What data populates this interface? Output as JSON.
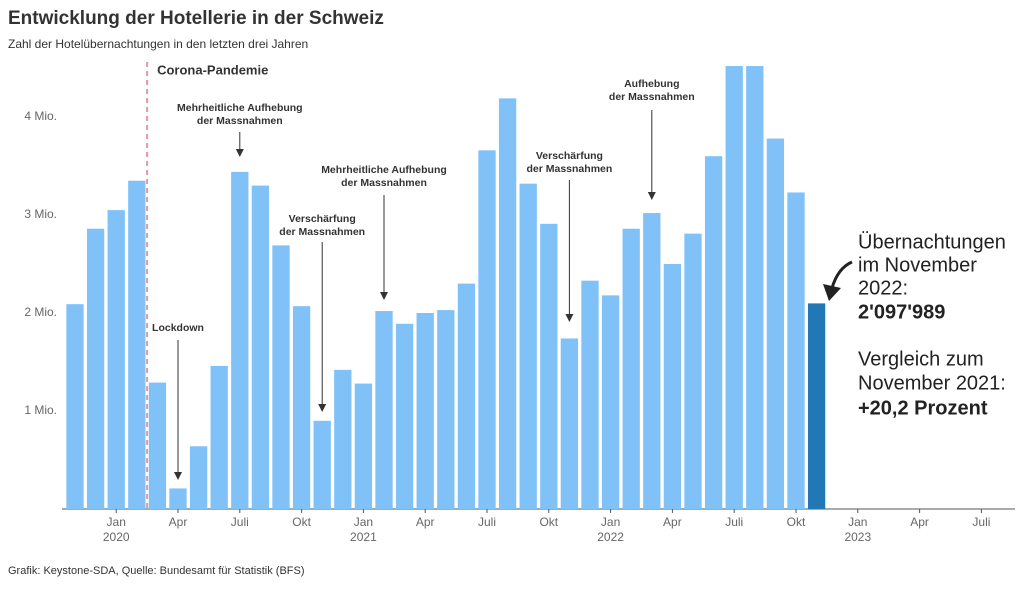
{
  "chart_data": {
    "type": "bar",
    "title": "Entwicklung der Hotellerie in der Schweiz",
    "subtitle": "Zahl der Hotelübernachtungen in den letzten drei Jahren",
    "source": "Grafik: Keystone-SDA, Quelle: Bundesamt für Statistik (BFS)",
    "x": [
      "2019-11",
      "2019-12",
      "2020-01",
      "2020-02",
      "2020-03",
      "2020-04",
      "2020-05",
      "2020-06",
      "2020-07",
      "2020-08",
      "2020-09",
      "2020-10",
      "2020-11",
      "2020-12",
      "2021-01",
      "2021-02",
      "2021-03",
      "2021-04",
      "2021-05",
      "2021-06",
      "2021-07",
      "2021-08",
      "2021-09",
      "2021-10",
      "2021-11",
      "2021-12",
      "2022-01",
      "2022-02",
      "2022-03",
      "2022-04",
      "2022-05",
      "2022-06",
      "2022-07",
      "2022-08",
      "2022-09",
      "2022-10",
      "2022-11"
    ],
    "values": [
      2.09,
      2.86,
      3.05,
      3.35,
      1.29,
      0.21,
      0.64,
      1.46,
      3.44,
      3.3,
      2.69,
      2.07,
      0.9,
      1.42,
      1.28,
      2.02,
      1.89,
      2.0,
      2.03,
      2.3,
      3.66,
      4.19,
      3.32,
      2.91,
      1.74,
      2.33,
      2.18,
      2.86,
      3.02,
      2.5,
      2.81,
      3.6,
      4.52,
      4.52,
      3.78,
      3.23,
      2.097989
    ],
    "color": "#80c2f7",
    "highlight_color": "#2277b5",
    "highlight_index": 36,
    "xlim": [
      "2019-10",
      "2023-08"
    ],
    "xticks": [
      {
        "value": "2020-01",
        "label": "Jan",
        "year": "2020"
      },
      {
        "value": "2020-04",
        "label": "Apr"
      },
      {
        "value": "2020-07",
        "label": "Juli"
      },
      {
        "value": "2020-10",
        "label": "Okt"
      },
      {
        "value": "2021-01",
        "label": "Jan",
        "year": "2021"
      },
      {
        "value": "2021-04",
        "label": "Apr"
      },
      {
        "value": "2021-07",
        "label": "Juli"
      },
      {
        "value": "2021-10",
        "label": "Okt"
      },
      {
        "value": "2022-01",
        "label": "Jan",
        "year": "2022"
      },
      {
        "value": "2022-04",
        "label": "Apr"
      },
      {
        "value": "2022-07",
        "label": "Juli"
      },
      {
        "value": "2022-10",
        "label": "Okt"
      },
      {
        "value": "2023-01",
        "label": "Jan",
        "year": "2023"
      },
      {
        "value": "2023-04",
        "label": "Apr"
      },
      {
        "value": "2023-07",
        "label": "Juli"
      }
    ],
    "ylim": [
      0,
      4.5
    ],
    "yticks": [
      {
        "value": 1,
        "label": "1 Mio."
      },
      {
        "value": 2,
        "label": "2 Mio."
      },
      {
        "value": 3,
        "label": "3 Mio."
      },
      {
        "value": 4,
        "label": "4 Mio."
      }
    ],
    "event_line": {
      "x": "2020-03",
      "label": "Corona-Pandemie"
    },
    "annotations": [
      {
        "x": "2020-04",
        "lines": [
          "Lockdown"
        ]
      },
      {
        "x": "2020-07",
        "lines": [
          "Mehrheitliche Aufhebung",
          "der Massnahmen"
        ]
      },
      {
        "x": "2020-11",
        "lines": [
          "Verschärfung",
          "der Massnahmen"
        ]
      },
      {
        "x": "2021-02",
        "lines": [
          "Mehrheitliche Aufhebung",
          "der Massnahmen"
        ]
      },
      {
        "x": "2021-11",
        "lines": [
          "Verschärfung",
          "der Massnahmen"
        ]
      },
      {
        "x": "2022-03",
        "lines": [
          "Aufhebung",
          "der Massnahmen"
        ]
      }
    ],
    "callout": {
      "lines": [
        "Übernachtungen",
        "im November",
        "2022:"
      ],
      "value": "2'097'989",
      "compare_lines": [
        "Vergleich zum",
        "November 2021:"
      ],
      "change": "+20,2 Prozent"
    }
  }
}
